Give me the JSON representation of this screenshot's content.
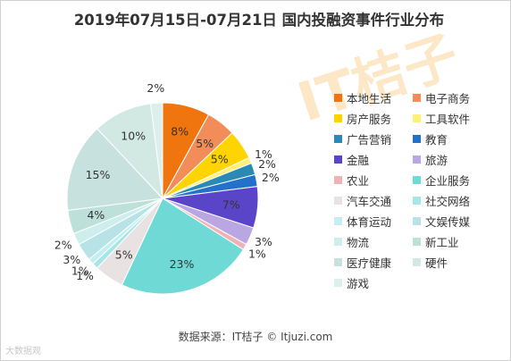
{
  "title": "2019年07月15日-07月21日 国内投融资事件行业分布",
  "source": "数据来源：IT桔子 © Itjuzi.com",
  "watermark": "大数据观",
  "background_mark": "IT桔子",
  "chart_data": {
    "type": "pie",
    "unit": "%",
    "categories": [
      "本地生活",
      "电子商务",
      "房产服务",
      "工具软件",
      "广告营销",
      "教育",
      "金融",
      "旅游",
      "农业",
      "企业服务",
      "汽车交通",
      "社交网络",
      "体育运动",
      "文娱传媒",
      "物流",
      "新工业",
      "医疗健康",
      "硬件",
      "游戏"
    ],
    "values": [
      8,
      5,
      5,
      1,
      2,
      2,
      7,
      3,
      1,
      23,
      5,
      1,
      1,
      3,
      2,
      4,
      15,
      10,
      2
    ],
    "labels": [
      "8%",
      "5%",
      "5%",
      "1%",
      "2%",
      "2%",
      "7%",
      "3%",
      "1%",
      "23%",
      "5%",
      "1%",
      "1%",
      "3%",
      "2%",
      "4%",
      "15%",
      "10%",
      "2%"
    ],
    "colors": [
      "#f0750f",
      "#f28d5a",
      "#ffd400",
      "#fff07a",
      "#2b8ab3",
      "#2471c9",
      "#5a45c9",
      "#b9a6e3",
      "#f0b3b5",
      "#6fd9d6",
      "#e8e2e2",
      "#a6e6e6",
      "#c4eef0",
      "#b8e3e6",
      "#ceeeed",
      "#bde0d8",
      "#c7e2de",
      "#d2e9e3",
      "#dcefea"
    ],
    "legend_position": "right"
  }
}
